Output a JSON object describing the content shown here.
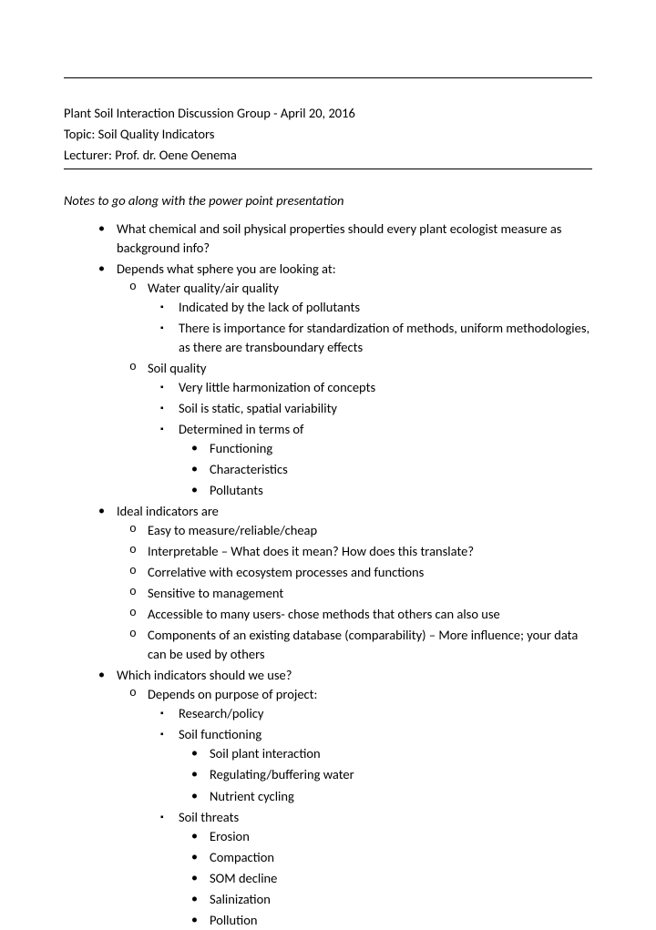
{
  "hr_top": "_____________________________________________________________________________________",
  "header": {
    "group_line": "Plant Soil Interaction Discussion Group - April 20, 2016",
    "topic_line": "Topic: Soil Quality Indicators",
    "lecturer_line": "Lecturer: Prof. dr. Oene Oenema"
  },
  "notes_intro": "Notes to go along with the power point presentation",
  "b1": "What chemical and soil physical properties should every plant ecologist measure as background info?",
  "b2": "Depends what sphere you are looking at:",
  "b2_1": "Water quality/air quality",
  "b2_1_1": "Indicated by the lack of pollutants",
  "b2_1_2": "There is importance for standardization of methods, uniform methodologies, as there are transboundary effects",
  "b2_2": "Soil quality",
  "b2_2_1": "Very little harmonization of concepts",
  "b2_2_2": "Soil is static, spatial variability",
  "b2_2_3": "Determined in terms of",
  "b2_2_3_1": "Functioning",
  "b2_2_3_2": "Characteristics",
  "b2_2_3_3": "Pollutants",
  "b3": "Ideal indicators are",
  "b3_1": "Easy to measure/reliable/cheap",
  "b3_2": "Interpretable – What does it mean? How does this translate?",
  "b3_3": "Correlative with ecosystem processes and functions",
  "b3_4": "Sensitive to management",
  "b3_5": "Accessible to many users- chose methods that others can also use",
  "b3_6": "Components of an existing database (comparability) – More influence; your data can be used by others",
  "b4": "Which indicators should we use?",
  "b4_1": "Depends on purpose of project:",
  "b4_1_1": "Research/policy",
  "b4_1_2": "Soil functioning",
  "b4_1_2_1": "Soil plant interaction",
  "b4_1_2_2": "Regulating/buffering water",
  "b4_1_2_3": "Nutrient cycling",
  "b4_1_3": "Soil threats",
  "b4_1_3_1": "Erosion",
  "b4_1_3_2": "Compaction",
  "b4_1_3_3": "SOM decline",
  "b4_1_3_4": "Salinization",
  "b4_1_3_5": "Pollution",
  "colors": {
    "text": "#000000",
    "bg": "#ffffff"
  },
  "fonts": {
    "body_pt": 11,
    "family": "Calibri"
  }
}
